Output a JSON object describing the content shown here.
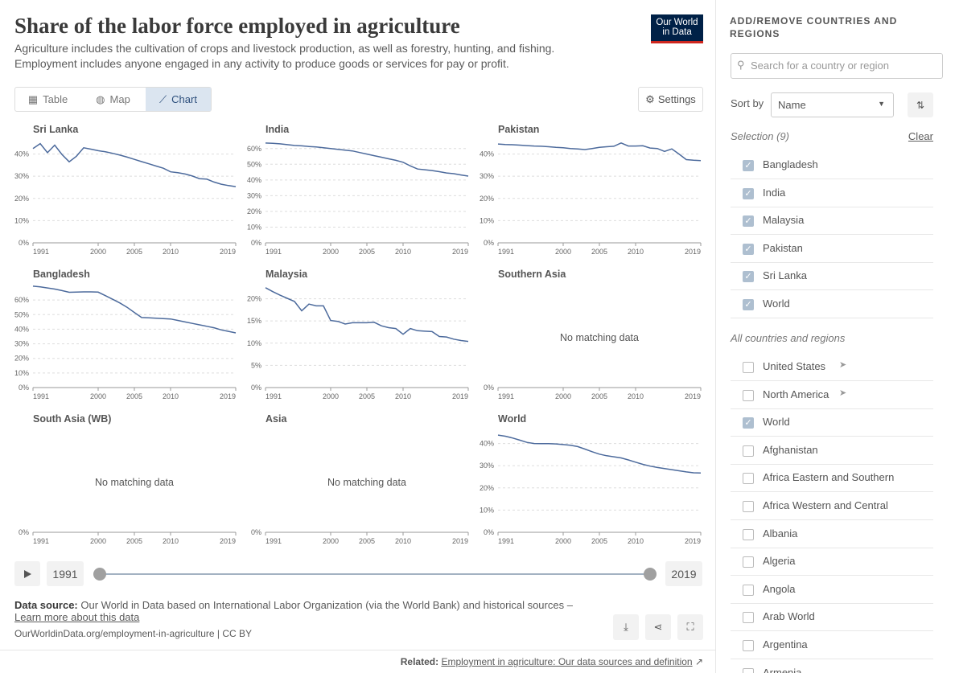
{
  "header": {
    "title": "Share of the labor force employed in agriculture",
    "subtitle": [
      "Agriculture includes the cultivation of crops and livestock production, as well as forestry, hunting, and fishing.",
      "Employment includes anyone engaged in any activity to produce goods or services for pay or profit."
    ],
    "logo": [
      "Our World",
      "in Data"
    ]
  },
  "tabs": [
    {
      "label": "Table",
      "active": false
    },
    {
      "label": "Map",
      "active": false
    },
    {
      "label": "Chart",
      "active": true
    }
  ],
  "settings": "Settings",
  "chart_data": [
    {
      "type": "line",
      "title": "Sri Lanka",
      "x": [
        1991,
        1992,
        1993,
        1994,
        1995,
        1996,
        1997,
        1998,
        1999,
        2000,
        2001,
        2002,
        2003,
        2004,
        2005,
        2006,
        2007,
        2008,
        2009,
        2010,
        2011,
        2012,
        2013,
        2014,
        2015,
        2016,
        2017,
        2018,
        2019
      ],
      "series": [
        {
          "name": "Sri Lanka",
          "color": "#4c6a9c",
          "values": [
            42.5,
            44.7,
            40.6,
            44,
            39.8,
            36.5,
            39,
            42.8,
            42.2,
            41.5,
            41,
            40.3,
            39.5,
            38.6,
            37.6,
            36.6,
            35.6,
            34.6,
            33.6,
            32,
            31.6,
            31,
            30.1,
            28.9,
            28.7,
            27.4,
            26.4,
            25.8,
            25.3
          ]
        }
      ],
      "xlim": [
        1991,
        2019
      ],
      "xticks": [
        1991,
        2000,
        2005,
        2010,
        2019
      ],
      "ylim": [
        0,
        46
      ],
      "yticks": [
        {
          "value": 0,
          "label": "0%"
        },
        {
          "value": 10,
          "label": "10%"
        },
        {
          "value": 20,
          "label": "20%"
        },
        {
          "value": 30,
          "label": "30%"
        },
        {
          "value": 40,
          "label": "40%"
        }
      ]
    },
    {
      "type": "line",
      "title": "India",
      "x": [
        1991,
        1992,
        1993,
        1994,
        1995,
        1996,
        1997,
        1998,
        1999,
        2000,
        2001,
        2002,
        2003,
        2004,
        2005,
        2006,
        2007,
        2008,
        2009,
        2010,
        2011,
        2012,
        2013,
        2014,
        2015,
        2016,
        2017,
        2018,
        2019
      ],
      "series": [
        {
          "name": "India",
          "color": "#4c6a9c",
          "values": [
            63.5,
            63.3,
            63,
            62.5,
            62,
            61.7,
            61.3,
            61,
            60.5,
            60,
            59.5,
            59,
            58.5,
            57.5,
            56.5,
            55.5,
            54.5,
            53.5,
            52.5,
            51.3,
            49,
            47,
            46.5,
            46,
            45.3,
            44.5,
            44,
            43.2,
            42.5
          ]
        }
      ],
      "xlim": [
        1991,
        2019
      ],
      "xticks": [
        1991,
        2000,
        2005,
        2010,
        2019
      ],
      "ylim": [
        0,
        65
      ],
      "yticks": [
        {
          "value": 0,
          "label": "0%"
        },
        {
          "value": 10,
          "label": "10%"
        },
        {
          "value": 20,
          "label": "20%"
        },
        {
          "value": 30,
          "label": "30%"
        },
        {
          "value": 40,
          "label": "40%"
        },
        {
          "value": 50,
          "label": "50%"
        },
        {
          "value": 60,
          "label": "60%"
        }
      ]
    },
    {
      "type": "line",
      "title": "Pakistan",
      "x": [
        1991,
        1992,
        1993,
        1994,
        1995,
        1996,
        1997,
        1998,
        1999,
        2000,
        2001,
        2002,
        2003,
        2004,
        2005,
        2006,
        2007,
        2008,
        2009,
        2010,
        2011,
        2012,
        2013,
        2014,
        2015,
        2016,
        2017,
        2018,
        2019
      ],
      "series": [
        {
          "name": "Pakistan",
          "color": "#4c6a9c",
          "values": [
            44.5,
            44.3,
            44.2,
            44,
            43.8,
            43.6,
            43.5,
            43.3,
            43,
            42.8,
            42.5,
            42.3,
            42,
            42.5,
            43,
            43.3,
            43.5,
            45,
            43.6,
            43.6,
            43.7,
            42.7,
            42.5,
            41.2,
            42.3,
            40,
            37.5,
            37.2,
            37
          ]
        }
      ],
      "xlim": [
        1991,
        2019
      ],
      "xticks": [
        1991,
        2000,
        2005,
        2010,
        2019
      ],
      "ylim": [
        0,
        46
      ],
      "yticks": [
        {
          "value": 0,
          "label": "0%"
        },
        {
          "value": 10,
          "label": "10%"
        },
        {
          "value": 20,
          "label": "20%"
        },
        {
          "value": 30,
          "label": "30%"
        },
        {
          "value": 40,
          "label": "40%"
        }
      ]
    },
    {
      "type": "line",
      "title": "Bangladesh",
      "x": [
        1991,
        1992,
        1993,
        1994,
        1995,
        1996,
        1997,
        1998,
        1999,
        2000,
        2001,
        2002,
        2003,
        2004,
        2005,
        2006,
        2007,
        2008,
        2009,
        2010,
        2011,
        2012,
        2013,
        2014,
        2015,
        2016,
        2017,
        2018,
        2019
      ],
      "series": [
        {
          "name": "Bangladesh",
          "color": "#4c6a9c",
          "values": [
            69.5,
            69,
            68.3,
            67.5,
            66.5,
            65.3,
            65.5,
            65.6,
            65.6,
            65.4,
            63,
            60.5,
            58,
            55,
            51.5,
            48,
            47.8,
            47.5,
            47.3,
            47,
            46,
            45,
            44,
            43,
            42,
            41,
            39.5,
            38.5,
            37.5
          ]
        }
      ],
      "xlim": [
        1991,
        2019
      ],
      "xticks": [
        1991,
        2000,
        2005,
        2010,
        2019
      ],
      "ylim": [
        0,
        70
      ],
      "yticks": [
        {
          "value": 0,
          "label": "0%"
        },
        {
          "value": 10,
          "label": "10%"
        },
        {
          "value": 20,
          "label": "20%"
        },
        {
          "value": 30,
          "label": "30%"
        },
        {
          "value": 40,
          "label": "40%"
        },
        {
          "value": 50,
          "label": "50%"
        },
        {
          "value": 60,
          "label": "60%"
        }
      ]
    },
    {
      "type": "line",
      "title": "Malaysia",
      "x": [
        1991,
        1992,
        1993,
        1994,
        1995,
        1996,
        1997,
        1998,
        1999,
        2000,
        2001,
        2002,
        2003,
        2004,
        2005,
        2006,
        2007,
        2008,
        2009,
        2010,
        2011,
        2012,
        2013,
        2014,
        2015,
        2016,
        2017,
        2018,
        2019
      ],
      "series": [
        {
          "name": "Malaysia",
          "color": "#4c6a9c",
          "values": [
            22.5,
            21.6,
            20.8,
            20.1,
            19.4,
            17.3,
            18.8,
            18.4,
            18.4,
            15.1,
            14.9,
            14.3,
            14.6,
            14.6,
            14.6,
            14.7,
            13.9,
            13.5,
            13.3,
            12,
            13.3,
            12.8,
            12.7,
            12.6,
            11.5,
            11.4,
            10.9,
            10.6,
            10.4
          ]
        }
      ],
      "xlim": [
        1991,
        2019
      ],
      "xticks": [
        1991,
        2000,
        2005,
        2010,
        2019
      ],
      "ylim": [
        0,
        23
      ],
      "yticks": [
        {
          "value": 0,
          "label": "0%"
        },
        {
          "value": 5,
          "label": "5%"
        },
        {
          "value": 10,
          "label": "10%"
        },
        {
          "value": 15,
          "label": "15%"
        },
        {
          "value": 20,
          "label": "20%"
        }
      ]
    },
    {
      "type": "line",
      "title": "Southern Asia",
      "note": "No matching data",
      "series": [],
      "xlim": [
        1991,
        2019
      ],
      "xticks": [
        1991,
        2000,
        2005,
        2010,
        2019
      ],
      "ylim": [
        0,
        46
      ],
      "yticks": [
        {
          "value": 0,
          "label": "0%"
        }
      ]
    },
    {
      "type": "line",
      "title": "South Asia (WB)",
      "note": "No matching data",
      "series": [],
      "xlim": [
        1991,
        2019
      ],
      "xticks": [
        1991,
        2000,
        2005,
        2010,
        2019
      ],
      "ylim": [
        0,
        46
      ],
      "yticks": [
        {
          "value": 0,
          "label": "0%"
        }
      ]
    },
    {
      "type": "line",
      "title": "Asia",
      "note": "No matching data",
      "series": [],
      "xlim": [
        1991,
        2019
      ],
      "xticks": [
        1991,
        2000,
        2005,
        2010,
        2019
      ],
      "ylim": [
        0,
        46
      ],
      "yticks": [
        {
          "value": 0,
          "label": "0%"
        }
      ]
    },
    {
      "type": "line",
      "title": "World",
      "x": [
        1991,
        1992,
        1993,
        1994,
        1995,
        1996,
        1997,
        1998,
        1999,
        2000,
        2001,
        2002,
        2003,
        2004,
        2005,
        2006,
        2007,
        2008,
        2009,
        2010,
        2011,
        2012,
        2013,
        2014,
        2015,
        2016,
        2017,
        2018,
        2019
      ],
      "series": [
        {
          "name": "World",
          "color": "#4c6a9c",
          "values": [
            43.8,
            43.3,
            42.5,
            41.5,
            40.5,
            40,
            39.9,
            39.9,
            39.8,
            39.5,
            39.2,
            38.6,
            37.5,
            36.3,
            35.2,
            34.5,
            34,
            33.5,
            32.6,
            31.6,
            30.6,
            29.8,
            29.2,
            28.7,
            28.2,
            27.7,
            27.2,
            26.8,
            26.7
          ]
        }
      ],
      "xlim": [
        1991,
        2019
      ],
      "xticks": [
        1991,
        2000,
        2005,
        2010,
        2019
      ],
      "ylim": [
        0,
        46
      ],
      "yticks": [
        {
          "value": 0,
          "label": "0%"
        },
        {
          "value": 10,
          "label": "10%"
        },
        {
          "value": 20,
          "label": "20%"
        },
        {
          "value": 30,
          "label": "30%"
        },
        {
          "value": 40,
          "label": "40%"
        }
      ]
    }
  ],
  "timeline": {
    "start": 1991,
    "end": 2019
  },
  "footer": {
    "source_label": "Data source:",
    "source": "Our World in Data based on International Labor Organization (via the World Bank) and historical sources –",
    "source_link": "Learn more about this data",
    "url": "OurWorldinData.org/employment-in-agriculture | CC BY",
    "related_label": "Related:",
    "related": "Employment in agriculture: Our data sources and definition"
  },
  "sidebar": {
    "title": "ADD/REMOVE COUNTRIES AND REGIONS",
    "search": "Search for a country or region",
    "sort_label": "Sort by",
    "sort_value": "Name",
    "selection_label": "Selection (9)",
    "clear": "Clear",
    "selected": [
      {
        "name": "Bangladesh",
        "checked": true
      },
      {
        "name": "India",
        "checked": true
      },
      {
        "name": "Malaysia",
        "checked": true
      },
      {
        "name": "Pakistan",
        "checked": true
      },
      {
        "name": "Sri Lanka",
        "checked": true
      },
      {
        "name": "World",
        "checked": true
      }
    ],
    "all_label": "All countries and regions",
    "all": [
      {
        "name": "United States",
        "checked": false,
        "icon": "location"
      },
      {
        "name": "North America",
        "checked": false,
        "icon": "location"
      },
      {
        "name": "World",
        "checked": true
      },
      {
        "name": "Afghanistan",
        "checked": false
      },
      {
        "name": "Africa Eastern and Southern",
        "checked": false
      },
      {
        "name": "Africa Western and Central",
        "checked": false
      },
      {
        "name": "Albania",
        "checked": false
      },
      {
        "name": "Algeria",
        "checked": false
      },
      {
        "name": "Angola",
        "checked": false
      },
      {
        "name": "Arab World",
        "checked": false
      },
      {
        "name": "Argentina",
        "checked": false
      },
      {
        "name": "Armenia",
        "checked": false
      }
    ]
  }
}
